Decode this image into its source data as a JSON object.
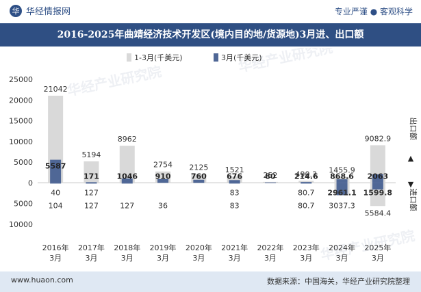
{
  "header": {
    "brand": "华经情报网",
    "slogan": "专业严谨 ● 客观科学",
    "title": "2016-2025年曲靖经济技术开发区(境内目的地/货源地)3月进、出口额"
  },
  "footer": {
    "site": "www.huaon.com",
    "source": "数据来源：中国海关，华经产业研究院整理"
  },
  "side_labels": {
    "export": "出口额",
    "import": "进口额"
  },
  "watermark": "华经产业研究院",
  "colors": {
    "ytd": "#d9d9d9",
    "month": "#4f6796",
    "title_bg": "#2f4f83",
    "footer_bg": "#dfe8f3"
  },
  "chart_data": {
    "type": "bar",
    "categories": [
      "2016年\n3月",
      "2017年\n3月",
      "2018年\n3月",
      "2019年\n3月",
      "2020年\n3月",
      "2021年\n3月",
      "2022年\n3月",
      "2023年\n3月",
      "2024年\n3月",
      "2025年\n3月"
    ],
    "ylim": [
      -10000,
      25000
    ],
    "yticks": [
      25000,
      20000,
      15000,
      10000,
      5000,
      0,
      -5000,
      -10000
    ],
    "ytick_labels": [
      "25000",
      "20000",
      "15000",
      "10000",
      "5000",
      "0",
      "5000",
      "10000"
    ],
    "legend": [
      "1-3月(千美元)",
      "3月(千美元)"
    ],
    "legend_position": "top",
    "series": [
      {
        "name": "1-3月(千美元)",
        "kind": "export",
        "values": [
          21042,
          5194,
          8962,
          2754,
          2125,
          1521,
          252,
          490.3,
          1455.9,
          9082.9
        ],
        "labels": [
          "21042",
          "5194",
          "8962",
          "2754",
          "2125",
          "1521",
          "252",
          "490.3",
          "1455.9",
          "9082.9"
        ]
      },
      {
        "name": "3月(千美元)",
        "kind": "export",
        "values": [
          5587,
          171,
          1046,
          910,
          760,
          676,
          80,
          214.6,
          868.6,
          2063
        ],
        "labels": [
          "5587",
          "171",
          "1046",
          "910",
          "760",
          "676",
          "80",
          "214.6",
          "868.6",
          "2063"
        ]
      },
      {
        "name": "1-3月(千美元)",
        "kind": "import",
        "values": [
          104,
          127,
          127,
          36,
          0,
          83,
          0,
          80.7,
          3037.3,
          5584.4
        ],
        "labels": [
          "104",
          "127",
          "127",
          "36",
          "",
          "83",
          "",
          "80.7",
          "3037.3",
          "5584.4"
        ]
      },
      {
        "name": "3月(千美元)",
        "kind": "import",
        "values": [
          40,
          127,
          127,
          0,
          0,
          83,
          0,
          80.7,
          2961.1,
          1599.8
        ],
        "labels": [
          "40",
          "127",
          "",
          "",
          "",
          "83",
          "",
          "80.7",
          "2961.1",
          "1599.8"
        ]
      }
    ]
  }
}
